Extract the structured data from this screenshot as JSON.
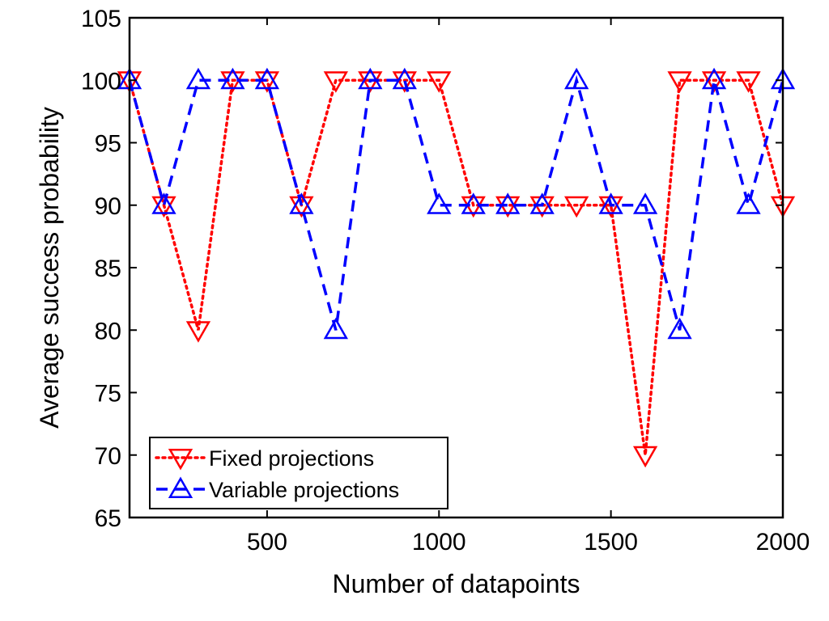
{
  "chart_data": {
    "type": "line",
    "xlabel": "Number of datapoints",
    "ylabel": "Average success probability",
    "xlim": [
      100,
      2000
    ],
    "ylim": [
      65,
      105
    ],
    "xticks": [
      500,
      1000,
      1500,
      2000
    ],
    "yticks": [
      65,
      70,
      75,
      80,
      85,
      90,
      95,
      100,
      105
    ],
    "xtick_labels": [
      "500",
      "1000",
      "1500",
      "2000"
    ],
    "ytick_labels": [
      "65",
      "70",
      "75",
      "80",
      "85",
      "90",
      "95",
      "100",
      "105"
    ],
    "grid": false,
    "legend_placement": "bottom-left",
    "x": [
      100,
      200,
      300,
      400,
      500,
      600,
      700,
      800,
      900,
      1000,
      1100,
      1200,
      1300,
      1400,
      1500,
      1600,
      1700,
      1800,
      1900,
      2000
    ],
    "series": [
      {
        "name": "Fixed projections",
        "color": "#ff0000",
        "line_style": "dotted",
        "marker": "triangle-down",
        "values": [
          100,
          90,
          80,
          100,
          100,
          90,
          100,
          100,
          100,
          100,
          90,
          90,
          90,
          90,
          90,
          70,
          100,
          100,
          100,
          90
        ]
      },
      {
        "name": "Variable projections",
        "color": "#0000ff",
        "line_style": "dashed",
        "marker": "triangle-up",
        "values": [
          100,
          90,
          100,
          100,
          100,
          90,
          80,
          100,
          100,
          90,
          90,
          90,
          90,
          100,
          90,
          90,
          80,
          100,
          90,
          100
        ]
      }
    ]
  }
}
